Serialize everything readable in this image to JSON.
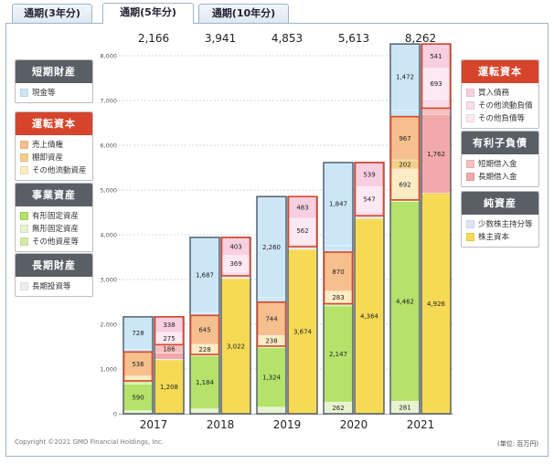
{
  "tabs": [
    {
      "label": "通期(3年分)",
      "active": false
    },
    {
      "label": "通期(5年分)",
      "active": true
    },
    {
      "label": "通期(10年分)",
      "active": false
    }
  ],
  "legends_left": [
    {
      "title": "短期財産",
      "color": "#5a5f66",
      "items": [
        {
          "label": "現金等",
          "color": "#cce6f6"
        }
      ]
    },
    {
      "title": "運転資本",
      "color": "#d6452b",
      "items": [
        {
          "label": "売上債権",
          "color": "#f6c08e"
        },
        {
          "label": "棚卸資産",
          "color": "#f4cf88"
        },
        {
          "label": "その他流動資産",
          "color": "#fbecc4"
        }
      ]
    },
    {
      "title": "事業資産",
      "color": "#5a5f66",
      "items": [
        {
          "label": "有形固定資産",
          "color": "#b4e26a"
        },
        {
          "label": "無形固定資産",
          "color": "#e7f3cf"
        },
        {
          "label": "その他資産等",
          "color": "#d5eca4"
        }
      ]
    },
    {
      "title": "長期財産",
      "color": "#5a5f66",
      "items": [
        {
          "label": "長期投資等",
          "color": "#eeeeee"
        }
      ]
    }
  ],
  "legends_right": [
    {
      "title": "運転資本",
      "color": "#d6452b",
      "items": [
        {
          "label": "買入債務",
          "color": "#f8cfe0"
        },
        {
          "label": "その他流動負債",
          "color": "#fadcea"
        },
        {
          "label": "その他負債等",
          "color": "#fde9f2"
        }
      ]
    },
    {
      "title": "有利子負債",
      "color": "#5a5f66",
      "items": [
        {
          "label": "短期借入金",
          "color": "#f7c0c0"
        },
        {
          "label": "長期借入金",
          "color": "#f2a9ab"
        }
      ]
    },
    {
      "title": "純資産",
      "color": "#5a5f66",
      "items": [
        {
          "label": "少数株主持分等",
          "color": "#dde4f7"
        },
        {
          "label": "株主資本",
          "color": "#f6da55"
        }
      ]
    }
  ],
  "chart_data": {
    "type": "bar",
    "categories": [
      "2017",
      "2018",
      "2019",
      "2020",
      "2021"
    ],
    "totals": [
      "2,166",
      "3,941",
      "4,853",
      "5,613",
      "8,262"
    ],
    "ylim": [
      0,
      8000
    ],
    "yticks": [
      0,
      1000,
      2000,
      3000,
      4000,
      5000,
      6000,
      7000,
      8000
    ],
    "ytick_labels": [
      "0",
      "1,000",
      "2,000",
      "3,000",
      "4,000",
      "5,000",
      "6,000",
      "7,000",
      "8,000"
    ],
    "assets": [
      [
        {
          "value": 70,
          "color": "#e7f3cf",
          "label": ""
        },
        {
          "value": 590,
          "color": "#b4e26a",
          "label": "590"
        },
        {
          "value": 75,
          "color": "#d5eca4",
          "label": ""
        },
        {
          "value": 110,
          "color": "#fbecc4",
          "label": ""
        },
        {
          "value": 536,
          "color": "#f6c08e",
          "label": "536"
        },
        {
          "value": 57,
          "color": "#cce6f6",
          "label": ""
        },
        {
          "value": 728,
          "color": "#cce6f6",
          "label": "728"
        }
      ],
      [
        {
          "value": 110,
          "color": "#e7f3cf",
          "label": ""
        },
        {
          "value": 1184,
          "color": "#b4e26a",
          "label": "1,184"
        },
        {
          "value": 30,
          "color": "#d5eca4",
          "label": ""
        },
        {
          "value": 228,
          "color": "#fbecc4",
          "label": "228"
        },
        {
          "value": 645,
          "color": "#f6c08e",
          "label": "645"
        },
        {
          "value": 57,
          "color": "#cce6f6",
          "label": ""
        },
        {
          "value": 1687,
          "color": "#cce6f6",
          "label": "1,687"
        }
      ],
      [
        {
          "value": 150,
          "color": "#e7f3cf",
          "label": ""
        },
        {
          "value": 1324,
          "color": "#b4e26a",
          "label": "1,324"
        },
        {
          "value": 37,
          "color": "#d5eca4",
          "label": ""
        },
        {
          "value": 238,
          "color": "#fbecc4",
          "label": "238"
        },
        {
          "value": 744,
          "color": "#f6c08e",
          "label": "744"
        },
        {
          "value": 100,
          "color": "#cce6f6",
          "label": ""
        },
        {
          "value": 2260,
          "color": "#cce6f6",
          "label": "2,260"
        }
      ],
      [
        {
          "value": 262,
          "color": "#e7f3cf",
          "label": "262"
        },
        {
          "value": 2147,
          "color": "#b4e26a",
          "label": "2,147"
        },
        {
          "value": 49,
          "color": "#d5eca4",
          "label": ""
        },
        {
          "value": 283,
          "color": "#fbecc4",
          "label": "283"
        },
        {
          "value": 870,
          "color": "#f6c08e",
          "label": "870"
        },
        {
          "value": 155,
          "color": "#cce6f6",
          "label": ""
        },
        {
          "value": 1847,
          "color": "#cce6f6",
          "label": "1,847"
        }
      ],
      [
        {
          "value": 281,
          "color": "#e7f3cf",
          "label": "281"
        },
        {
          "value": 4462,
          "color": "#b4e26a",
          "label": "4,462"
        },
        {
          "value": 35,
          "color": "#d5eca4",
          "label": ""
        },
        {
          "value": 692,
          "color": "#fbecc4",
          "label": "692"
        },
        {
          "value": 202,
          "color": "#f4cf88",
          "label": "202"
        },
        {
          "value": 967,
          "color": "#f6c08e",
          "label": "967"
        },
        {
          "value": 151,
          "color": "#cce6f6",
          "label": ""
        },
        {
          "value": 1472,
          "color": "#cce6f6",
          "label": "1,472"
        }
      ]
    ],
    "liabilities": [
      [
        {
          "value": 1208,
          "color": "#f6da55",
          "label": "1,208"
        },
        {
          "value": 10,
          "color": "#dde4f7",
          "label": ""
        },
        {
          "value": 140,
          "color": "#f2a9ab",
          "label": ""
        },
        {
          "value": 186,
          "color": "#f7c0c0",
          "label": "186"
        },
        {
          "value": 275,
          "color": "#fde9f2",
          "label": "275"
        },
        {
          "value": 338,
          "color": "#f8cfe0",
          "label": "338"
        },
        {
          "value": 9,
          "color": "#fadcea",
          "label": ""
        }
      ],
      [
        {
          "value": 3022,
          "color": "#f6da55",
          "label": "3,022"
        },
        {
          "value": 60,
          "color": "#dde4f7",
          "label": ""
        },
        {
          "value": 87,
          "color": "#fadcea",
          "label": ""
        },
        {
          "value": 369,
          "color": "#fde9f2",
          "label": "369"
        },
        {
          "value": 403,
          "color": "#f8cfe0",
          "label": "403"
        }
      ],
      [
        {
          "value": 3674,
          "color": "#f6da55",
          "label": "3,674"
        },
        {
          "value": 60,
          "color": "#dde4f7",
          "label": ""
        },
        {
          "value": 74,
          "color": "#fadcea",
          "label": ""
        },
        {
          "value": 562,
          "color": "#fde9f2",
          "label": "562"
        },
        {
          "value": 483,
          "color": "#f8cfe0",
          "label": "483"
        }
      ],
      [
        {
          "value": 4364,
          "color": "#f6da55",
          "label": "4,364"
        },
        {
          "value": 60,
          "color": "#dde4f7",
          "label": ""
        },
        {
          "value": 103,
          "color": "#fadcea",
          "label": ""
        },
        {
          "value": 547,
          "color": "#fde9f2",
          "label": "547"
        },
        {
          "value": 539,
          "color": "#f8cfe0",
          "label": "539"
        }
      ],
      [
        {
          "value": 4926,
          "color": "#f6da55",
          "label": "4,926"
        },
        {
          "value": 1762,
          "color": "#f2a9ab",
          "label": "1,762"
        },
        {
          "value": 140,
          "color": "#f7c0c0",
          "label": ""
        },
        {
          "value": 200,
          "color": "#fadcea",
          "label": ""
        },
        {
          "value": 693,
          "color": "#fde9f2",
          "label": "693"
        },
        {
          "value": 541,
          "color": "#f8cfe0",
          "label": "541"
        }
      ]
    ],
    "working_capital_outline_color": "#d6452b"
  },
  "footer": {
    "copyright": "Copyright ©2021 GMO Financial Holdings, Inc.",
    "unit": "(単位: 百万円)"
  }
}
